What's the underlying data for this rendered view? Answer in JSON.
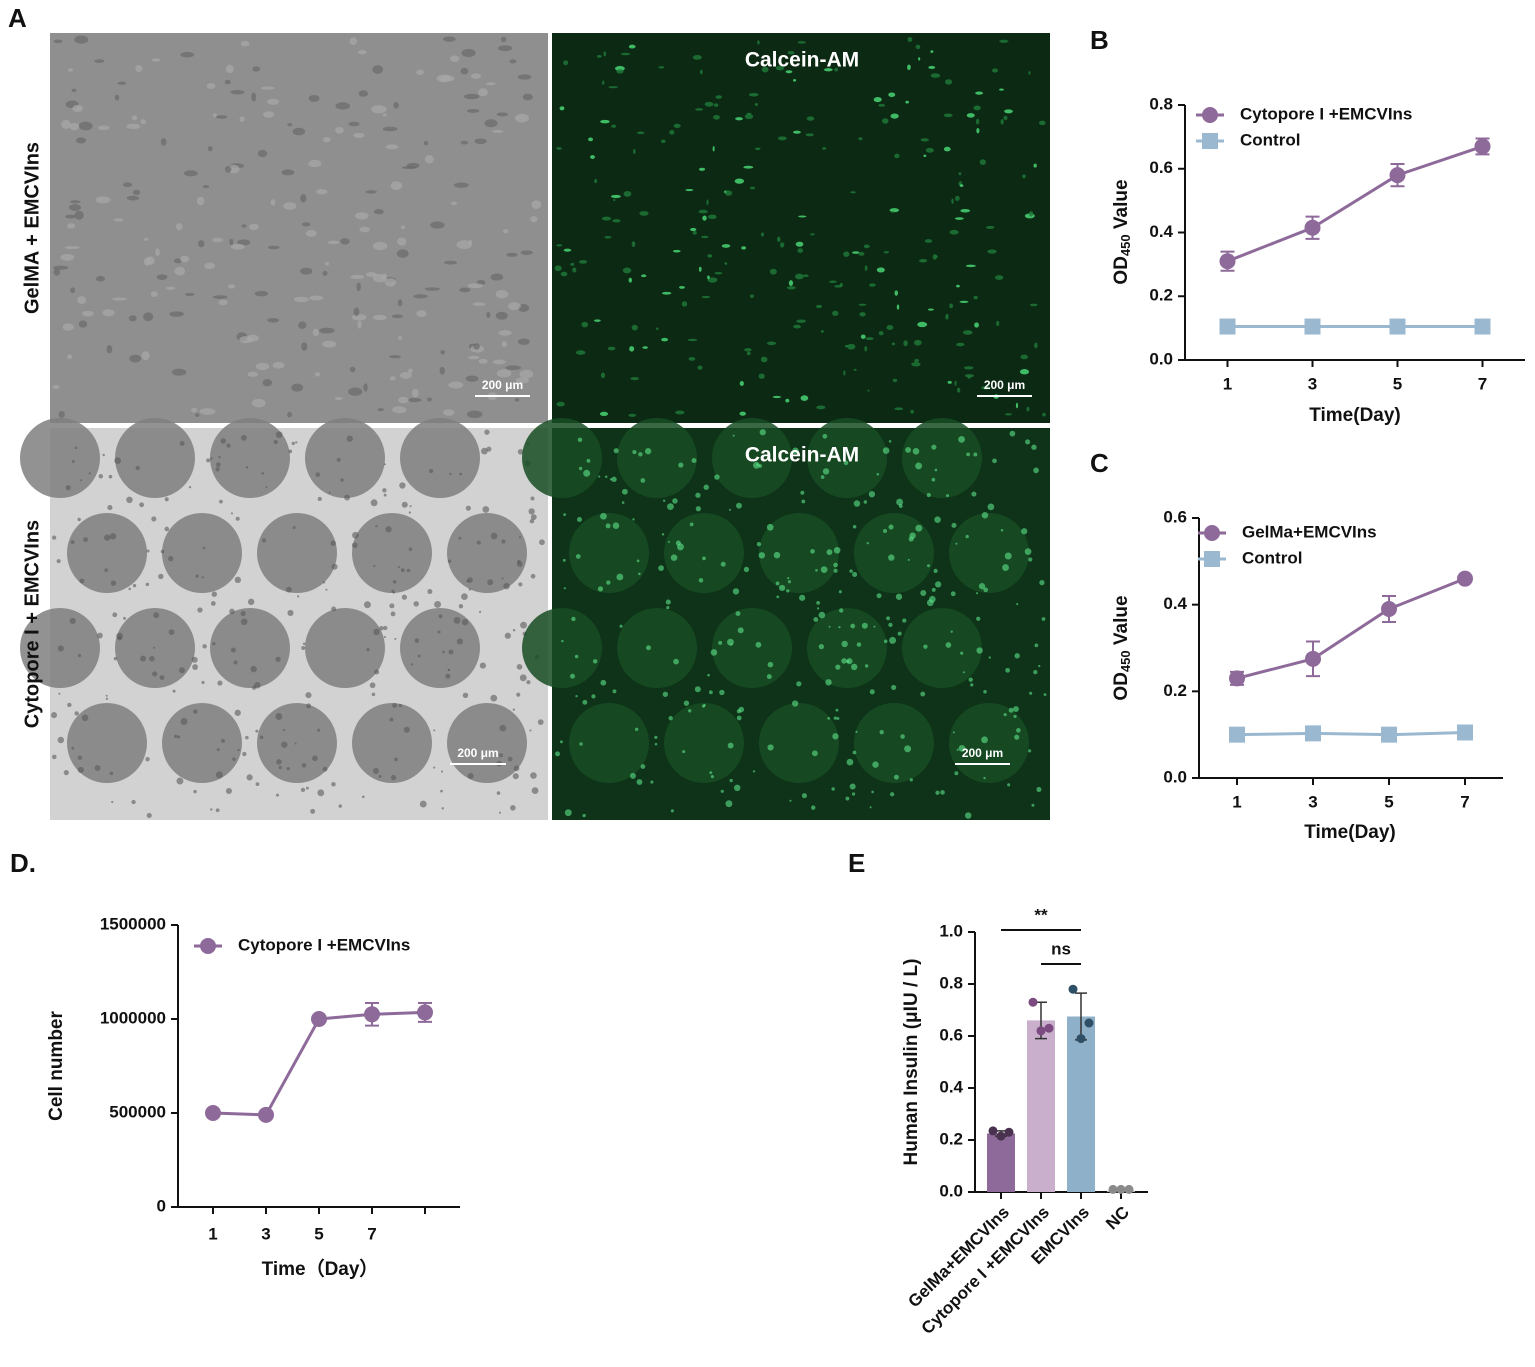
{
  "panel_a": {
    "label": "A",
    "rows": [
      "GelMA + EMCVIns",
      "Cytopore I + EMCVIns"
    ],
    "stain_label": "Calcein-AM",
    "scale_bar": "200 μm"
  },
  "chart_data": [
    {
      "type": "line",
      "label": "B",
      "y_label": "OD",
      "y_label_sub": "450",
      "y_label_suffix": " Value",
      "x_label": "Time(Day)",
      "x": [
        1,
        3,
        5,
        7
      ],
      "xlim": [
        0,
        8
      ],
      "xticks": [
        1,
        3,
        5,
        7
      ],
      "ylim": [
        0,
        0.8
      ],
      "yticks": [
        {
          "value": 0,
          "label": "0.0"
        },
        0.2,
        0.4,
        0.6,
        0.8
      ],
      "series": [
        {
          "name": "Cytopore I +EMCVIns",
          "color": "#8e6a9a",
          "marker": "circle",
          "values": [
            0.31,
            0.415,
            0.58,
            0.67
          ],
          "errors": [
            0.03,
            0.035,
            0.035,
            0.025
          ]
        },
        {
          "name": "Control",
          "color": "#9ab8d0",
          "marker": "square",
          "values": [
            0.105,
            0.105,
            0.105,
            0.105
          ],
          "errors": [
            0.005,
            0.005,
            0.005,
            0.005
          ]
        }
      ]
    },
    {
      "type": "line",
      "label": "C",
      "y_label": "OD",
      "y_label_sub": "450",
      "y_label_suffix": " Value",
      "x_label": "Time(Day)",
      "x": [
        1,
        3,
        5,
        7
      ],
      "xlim": [
        0,
        8
      ],
      "xticks": [
        1,
        3,
        5,
        7
      ],
      "ylim": [
        0,
        0.6
      ],
      "yticks": [
        {
          "value": 0,
          "label": "0.0"
        },
        0.2,
        0.4,
        0.6
      ],
      "series": [
        {
          "name": "GelMa+EMCVIns",
          "color": "#8e6a9a",
          "marker": "circle",
          "values": [
            0.23,
            0.275,
            0.39,
            0.46
          ],
          "errors": [
            0.015,
            0.04,
            0.03,
            0.005
          ]
        },
        {
          "name": "Control",
          "color": "#9ab8d0",
          "marker": "square",
          "values": [
            0.1,
            0.103,
            0.1,
            0.105
          ],
          "errors": [
            0.01,
            0.015,
            0.01,
            0.01
          ]
        }
      ]
    },
    {
      "type": "line",
      "label": "D.",
      "y_label": "Cell number",
      "x_label": "Time（Day）",
      "categories": [
        "1",
        "3",
        "5",
        "7",
        null
      ],
      "ylim": [
        0,
        1500000
      ],
      "yticks": [
        0,
        500000,
        1000000,
        1500000
      ],
      "series": [
        {
          "name": "Cytopore I +EMCVIns",
          "color": "#8e6a9a",
          "marker": "circle",
          "values": [
            500000,
            490000,
            1000000,
            1025000,
            1035000
          ],
          "errors": [
            0,
            0,
            10000,
            60000,
            50000
          ]
        }
      ]
    },
    {
      "type": "bar",
      "label": "E",
      "y_label": "Human Insulin (μIU / L)",
      "categories": [
        "GelMa+EMCVIns",
        "Cytopore I +EMCVIns",
        "EMCVIns",
        "NC"
      ],
      "values": [
        0.225,
        0.66,
        0.675,
        0.005
      ],
      "errors": [
        0.01,
        0.07,
        0.09,
        0.003
      ],
      "colors": [
        "#8e6a9a",
        "#c9afcb",
        "#8fb0c9",
        "#b0b0b0"
      ],
      "points": [
        [
          0.235,
          0.215,
          0.23
        ],
        [
          0.73,
          0.62,
          0.63
        ],
        [
          0.78,
          0.59,
          0.65
        ],
        [
          0.01,
          0.01,
          0.01
        ]
      ],
      "point_colors": [
        "#4a3150",
        "#7a4a80",
        "#2f4f66",
        "#8a8a8a"
      ],
      "ylim": [
        0,
        1
      ],
      "yticks": [
        {
          "value": 0,
          "label": "0.0"
        },
        0.2,
        0.4,
        0.6,
        0.8,
        {
          "value": 1,
          "label": "1.0"
        }
      ],
      "comparisons": [
        {
          "from": 0,
          "to": 2,
          "label": "**"
        },
        {
          "from": 1,
          "to": 2,
          "label": "ns"
        }
      ]
    }
  ]
}
